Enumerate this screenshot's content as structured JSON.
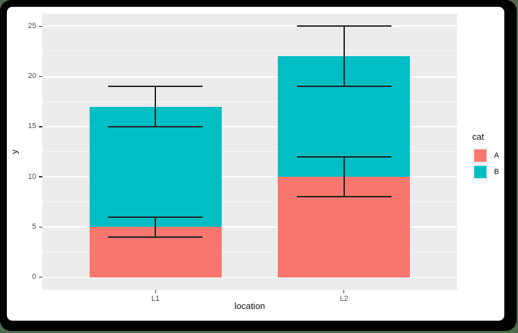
{
  "window": {
    "frame_color": "#000000",
    "backdrop_color": "#4e6b4e",
    "canvas_color": "#ffffff"
  },
  "chart_data": {
    "type": "bar",
    "subtype": "stacked-bars-with-errorbars",
    "title": "",
    "xlabel": "location",
    "ylabel": "y",
    "categories": [
      "L1",
      "L2"
    ],
    "series": [
      {
        "name": "A",
        "color": "#F8766D",
        "values": [
          5,
          10
        ]
      },
      {
        "name": "B",
        "color": "#00BFC4",
        "values": [
          12,
          12
        ]
      }
    ],
    "stack_totals": [
      17,
      22
    ],
    "error_bars": [
      {
        "category": "L1",
        "center": 5,
        "ymin": 4,
        "ymax": 6
      },
      {
        "category": "L1",
        "center": 17,
        "ymin": 15,
        "ymax": 19
      },
      {
        "category": "L2",
        "center": 10,
        "ymin": 8,
        "ymax": 12
      },
      {
        "category": "L2",
        "center": 22,
        "ymin": 19,
        "ymax": 25
      }
    ],
    "ylim": [
      0,
      25
    ],
    "y_major_ticks": [
      0,
      5,
      10,
      15,
      20,
      25
    ],
    "y_minor_ticks": [
      2.5,
      7.5,
      12.5,
      17.5,
      22.5
    ],
    "grid": true,
    "legend": {
      "title": "cat",
      "position": "right",
      "entries": [
        {
          "label": "A",
          "color": "#F8766D"
        },
        {
          "label": "B",
          "color": "#00BFC4"
        }
      ]
    },
    "panel_bg": "#EBEBEB",
    "grid_color": "#FFFFFF",
    "errorbar_color": "#1f1f1f",
    "tick_label_color": "#4D4D4D",
    "axis_title_color": "#111111"
  }
}
